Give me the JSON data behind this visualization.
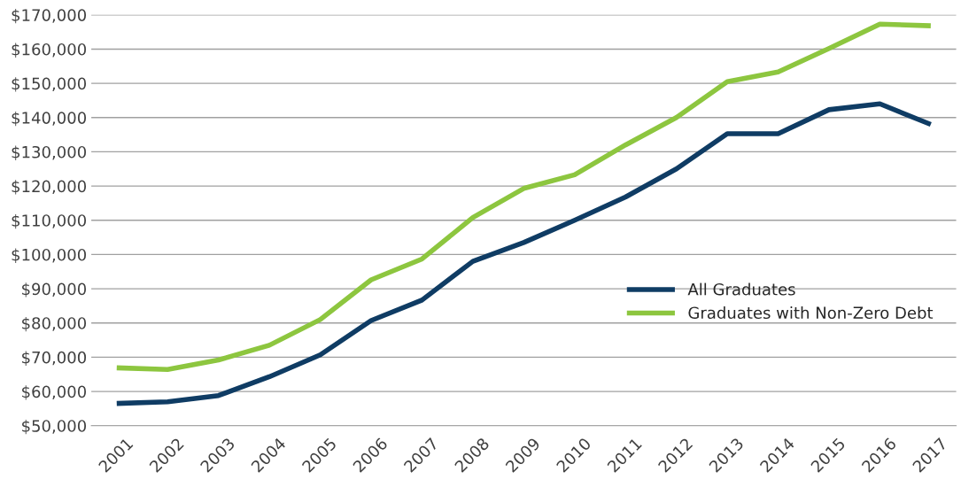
{
  "chart_data": {
    "type": "line",
    "categories": [
      "2001",
      "2002",
      "2003",
      "2004",
      "2005",
      "2006",
      "2007",
      "2008",
      "2009",
      "2010",
      "2011",
      "2012",
      "2013",
      "2014",
      "2015",
      "2016",
      "2017"
    ],
    "series": [
      {
        "name": "All Graduates",
        "color": "#0f3c64",
        "values": [
          56500,
          57000,
          58800,
          64300,
          70700,
          80700,
          86700,
          98000,
          103500,
          110000,
          116800,
          125000,
          135300,
          135300,
          142300,
          144000,
          138000
        ]
      },
      {
        "name": "Graduates with Non-Zero Debt",
        "color": "#8dc63f",
        "values": [
          66900,
          66400,
          69200,
          73500,
          81000,
          92600,
          98700,
          110800,
          119300,
          123300,
          132000,
          140000,
          150500,
          153300,
          160200,
          167300,
          166800
        ]
      }
    ],
    "ylim": [
      50000,
      170000
    ],
    "yticks": [
      {
        "value": 50000,
        "label": "$50,000"
      },
      {
        "value": 60000,
        "label": "$60,000"
      },
      {
        "value": 70000,
        "label": "$70,000"
      },
      {
        "value": 80000,
        "label": "$80,000"
      },
      {
        "value": 90000,
        "label": "$90,000"
      },
      {
        "value": 100000,
        "label": "$100,000"
      },
      {
        "value": 110000,
        "label": "$110,000"
      },
      {
        "value": 120000,
        "label": "$120,000"
      },
      {
        "value": 130000,
        "label": "$130,000"
      },
      {
        "value": 140000,
        "label": "$140,000"
      },
      {
        "value": 150000,
        "label": "$150,000"
      },
      {
        "value": 160000,
        "label": "$160,000"
      },
      {
        "value": 170000,
        "label": "$170,000"
      }
    ],
    "grid": "y",
    "legend": "right",
    "marker": "none",
    "line_style": "solid"
  }
}
